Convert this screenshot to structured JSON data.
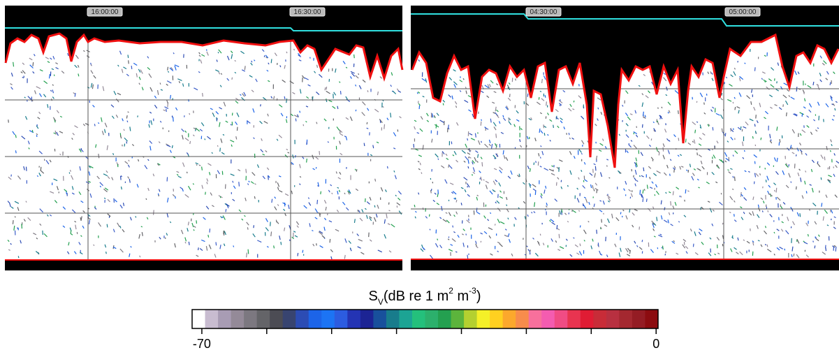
{
  "panels": [
    {
      "time_labels": [
        "16:00:00",
        "16:30:00"
      ]
    },
    {
      "time_labels": [
        "04:30:00",
        "05:00:00"
      ]
    }
  ],
  "colorbar": {
    "label": {
      "symbol": "S",
      "subscript": "V",
      "text": "(dB re 1 m",
      "sup1": "2",
      "mid": " m",
      "sup2": "-3",
      "end": ")"
    },
    "lim": [
      -71.5,
      0.3
    ],
    "ticks": [
      -70,
      {
        "value": -60,
        "label": null
      },
      {
        "value": -50,
        "label": null
      },
      {
        "value": -40,
        "label": null
      },
      {
        "value": -30,
        "label": null
      },
      {
        "value": -20,
        "label": null
      },
      {
        "value": -10,
        "label": null
      },
      0
    ],
    "colors": [
      "#ffffff",
      "#c8bcd0",
      "#a89cb4",
      "#948a98",
      "#7c7880",
      "#646468",
      "#4c4c54",
      "#384470",
      "#2c4cb4",
      "#1c64e8",
      "#1c74f4",
      "#2c5ce0",
      "#2434b4",
      "#1c2494",
      "#18509c",
      "#187c8c",
      "#1ca494",
      "#24c07c",
      "#2cb06c",
      "#24a050",
      "#5cb43c",
      "#b4d030",
      "#f4f028",
      "#ffd020",
      "#fca82c",
      "#f88c4c",
      "#f8709c",
      "#f45cb0",
      "#f04c84",
      "#e83450",
      "#e01c34",
      "#c82c38",
      "#b83040",
      "#a42830",
      "#941c24",
      "#8c0c10"
    ]
  }
}
